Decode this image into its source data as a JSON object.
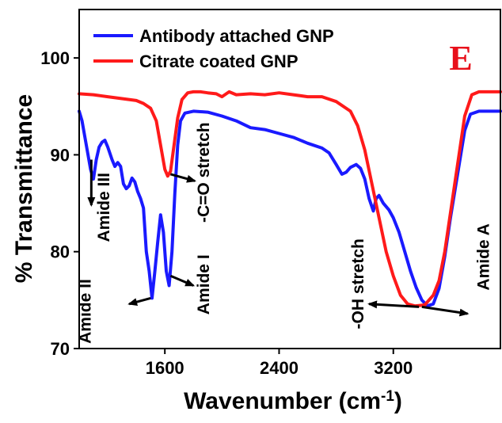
{
  "chart_data": {
    "type": "line",
    "panel_label": "E",
    "xlabel": "Wavenumber (cm",
    "xlabel_sup": "-1",
    "xlabel_tail": ")",
    "ylabel": "% Transmittance",
    "xlim": [
      1000,
      3950
    ],
    "ylim": [
      70,
      105
    ],
    "x_ticks": [
      1600,
      2400,
      3200
    ],
    "x_tick_labels": [
      "1600",
      "2400",
      "3200"
    ],
    "y_ticks": [
      70,
      80,
      90,
      100
    ],
    "y_tick_labels": [
      "70",
      "80",
      "90",
      "100"
    ],
    "legend_position": "top-left",
    "series": [
      {
        "name": "Antibody attached GNP",
        "color": "#1a1aff",
        "points": [
          [
            1000,
            94.5
          ],
          [
            1020,
            93.5
          ],
          [
            1050,
            91
          ],
          [
            1080,
            88.5
          ],
          [
            1100,
            87.5
          ],
          [
            1120,
            89.5
          ],
          [
            1140,
            90.8
          ],
          [
            1160,
            91.3
          ],
          [
            1180,
            91.5
          ],
          [
            1200,
            90.8
          ],
          [
            1230,
            89.5
          ],
          [
            1250,
            88.8
          ],
          [
            1270,
            89.2
          ],
          [
            1290,
            88.8
          ],
          [
            1310,
            87
          ],
          [
            1330,
            86.5
          ],
          [
            1350,
            86.8
          ],
          [
            1370,
            87.6
          ],
          [
            1390,
            87.2
          ],
          [
            1410,
            86.2
          ],
          [
            1430,
            85.5
          ],
          [
            1450,
            84.5
          ],
          [
            1470,
            80
          ],
          [
            1490,
            78
          ],
          [
            1510,
            75.2
          ],
          [
            1530,
            78
          ],
          [
            1550,
            81
          ],
          [
            1570,
            83.8
          ],
          [
            1590,
            82
          ],
          [
            1610,
            78
          ],
          [
            1630,
            76.5
          ],
          [
            1650,
            80
          ],
          [
            1670,
            86
          ],
          [
            1690,
            91
          ],
          [
            1710,
            93.5
          ],
          [
            1740,
            94.3
          ],
          [
            1800,
            94.5
          ],
          [
            1900,
            94.4
          ],
          [
            2000,
            94
          ],
          [
            2100,
            93.5
          ],
          [
            2200,
            92.8
          ],
          [
            2300,
            92.6
          ],
          [
            2400,
            92.2
          ],
          [
            2500,
            91.8
          ],
          [
            2600,
            91.2
          ],
          [
            2700,
            90.7
          ],
          [
            2750,
            90.2
          ],
          [
            2800,
            89
          ],
          [
            2840,
            88
          ],
          [
            2870,
            88.2
          ],
          [
            2900,
            88.7
          ],
          [
            2940,
            89
          ],
          [
            2970,
            88.6
          ],
          [
            3000,
            87.5
          ],
          [
            3030,
            85.5
          ],
          [
            3060,
            84.2
          ],
          [
            3080,
            85.5
          ],
          [
            3100,
            85.8
          ],
          [
            3130,
            85
          ],
          [
            3170,
            84.3
          ],
          [
            3200,
            83.5
          ],
          [
            3240,
            82
          ],
          [
            3280,
            80
          ],
          [
            3320,
            78
          ],
          [
            3360,
            76.3
          ],
          [
            3400,
            75
          ],
          [
            3440,
            74.4
          ],
          [
            3480,
            74.6
          ],
          [
            3520,
            76.2
          ],
          [
            3560,
            79.5
          ],
          [
            3600,
            83.5
          ],
          [
            3650,
            88
          ],
          [
            3700,
            92.5
          ],
          [
            3740,
            94.2
          ],
          [
            3800,
            94.5
          ],
          [
            3950,
            94.5
          ]
        ]
      },
      {
        "name": "Citrate coated GNP",
        "color": "#ff1a1a",
        "points": [
          [
            1000,
            96.3
          ],
          [
            1100,
            96.2
          ],
          [
            1200,
            96
          ],
          [
            1300,
            95.8
          ],
          [
            1400,
            95.6
          ],
          [
            1450,
            95.3
          ],
          [
            1500,
            94.8
          ],
          [
            1540,
            93.5
          ],
          [
            1570,
            91
          ],
          [
            1600,
            88.5
          ],
          [
            1620,
            87.8
          ],
          [
            1640,
            88.3
          ],
          [
            1660,
            90.5
          ],
          [
            1690,
            93.8
          ],
          [
            1720,
            95.7
          ],
          [
            1760,
            96.4
          ],
          [
            1800,
            96.5
          ],
          [
            1850,
            96.5
          ],
          [
            1900,
            96.4
          ],
          [
            1960,
            96.3
          ],
          [
            2000,
            96
          ],
          [
            2050,
            96.5
          ],
          [
            2100,
            96.2
          ],
          [
            2200,
            96.3
          ],
          [
            2300,
            96.2
          ],
          [
            2400,
            96.4
          ],
          [
            2500,
            96.2
          ],
          [
            2600,
            96
          ],
          [
            2700,
            96
          ],
          [
            2800,
            95.5
          ],
          [
            2900,
            94.5
          ],
          [
            2950,
            93
          ],
          [
            3000,
            90.5
          ],
          [
            3050,
            87
          ],
          [
            3100,
            83.5
          ],
          [
            3150,
            80
          ],
          [
            3200,
            77.5
          ],
          [
            3250,
            75.5
          ],
          [
            3300,
            74.6
          ],
          [
            3350,
            74.4
          ],
          [
            3420,
            74.5
          ],
          [
            3480,
            75.5
          ],
          [
            3520,
            77
          ],
          [
            3560,
            80
          ],
          [
            3600,
            84
          ],
          [
            3650,
            89
          ],
          [
            3700,
            94
          ],
          [
            3750,
            96.2
          ],
          [
            3800,
            96.5
          ],
          [
            3950,
            96.5
          ]
        ]
      }
    ],
    "annotations": [
      {
        "text": "Amide II",
        "x": 1080,
        "y": 70.5,
        "rotate": -90
      },
      {
        "text": "Amide III",
        "x": 1210,
        "y": 81,
        "rotate": -90
      },
      {
        "text": "Amide I",
        "x": 1910,
        "y": 73.5,
        "rotate": -90
      },
      {
        "text": "-C=O stretch",
        "x": 1910,
        "y": 83,
        "rotate": -90
      },
      {
        "text": "-OH stretch",
        "x": 2990,
        "y": 72,
        "rotate": -90
      },
      {
        "text": "Amide A",
        "x": 3870,
        "y": 76,
        "rotate": -90
      }
    ],
    "arrows": [
      {
        "from": [
          1085,
          89.5
        ],
        "to": [
          1085,
          84.8
        ]
      },
      {
        "from": [
          1500,
          75.2
        ],
        "to": [
          1350,
          74.6
        ]
      },
      {
        "from": [
          1640,
          77.5
        ],
        "to": [
          1800,
          76.5
        ]
      },
      {
        "from": [
          1640,
          88
        ],
        "to": [
          1810,
          87.3
        ]
      },
      {
        "from": [
          3380,
          74.3
        ],
        "to": [
          3030,
          74.6
        ]
      },
      {
        "from": [
          3400,
          74.3
        ],
        "to": [
          3720,
          73.6
        ]
      }
    ]
  }
}
